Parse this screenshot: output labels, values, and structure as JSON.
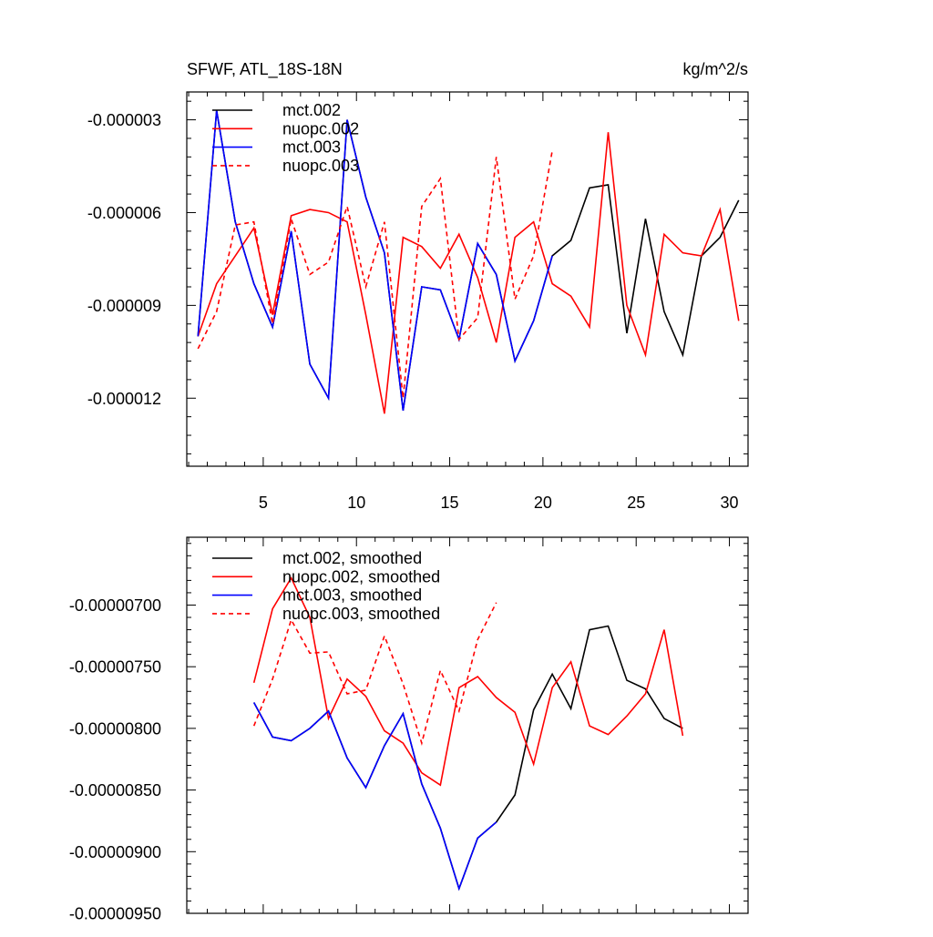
{
  "chart_data": [
    {
      "type": "line",
      "title": "SFWF, ATL_18S-18N",
      "units": "kg/m^2/s",
      "xlabel": "",
      "ylabel": "",
      "xlim": [
        0.9,
        31.0
      ],
      "ylim": [
        -1.42e-05,
        -2.1e-06
      ],
      "xticks": [
        5,
        10,
        15,
        20,
        25,
        30
      ],
      "xtick_labels": [
        "5",
        "10",
        "15",
        "20",
        "25",
        "30"
      ],
      "yticks": [
        -3e-06,
        -6e-06,
        -9e-06,
        -1.2e-05
      ],
      "ytick_labels": [
        "-0.000003",
        "-0.000006",
        "-0.000009",
        "-0.000012"
      ],
      "legend_position": "top-left",
      "series": [
        {
          "name": "mct.002",
          "color": "#000000",
          "dash": "solid",
          "x": [
            1.5,
            2.5,
            3.5,
            4.5,
            5.5,
            6.5,
            7.5,
            8.5,
            9.5,
            10.5,
            11.5,
            12.5,
            13.5,
            14.5,
            15.5,
            16.5,
            17.5,
            18.5,
            19.5,
            20.5,
            21.5,
            22.5,
            23.5,
            24.5,
            25.5,
            26.5,
            27.5,
            28.5,
            29.5,
            30.5
          ],
          "values": [
            -1e-05,
            -2.7e-06,
            -6.3e-06,
            -8.3e-06,
            -9.7e-06,
            -6.6e-06,
            -1.09e-05,
            -1.2e-05,
            -3e-06,
            -5.5e-06,
            -7.3e-06,
            -1.24e-05,
            -8.4e-06,
            -8.5e-06,
            -1.01e-05,
            -7e-06,
            -8e-06,
            -1.08e-05,
            -9.5e-06,
            -7.4e-06,
            -6.9e-06,
            -5.2e-06,
            -5.1e-06,
            -9.9e-06,
            -6.2e-06,
            -9.2e-06,
            -1.06e-05,
            -7.4e-06,
            -6.8e-06,
            -5.6e-06
          ]
        },
        {
          "name": "nuopc.002",
          "color": "#ff0000",
          "dash": "solid",
          "x": [
            1.5,
            2.5,
            3.5,
            4.5,
            5.5,
            6.5,
            7.5,
            8.5,
            9.5,
            10.5,
            11.5,
            12.5,
            13.5,
            14.5,
            15.5,
            16.5,
            17.5,
            18.5,
            19.5,
            20.5,
            21.5,
            22.5,
            23.5,
            24.5,
            25.5,
            26.5,
            27.5,
            28.5,
            29.5,
            30.5
          ],
          "values": [
            -1e-05,
            -8.3e-06,
            -7.4e-06,
            -6.5e-06,
            -9.3e-06,
            -6.1e-06,
            -5.9e-06,
            -6e-06,
            -6.3e-06,
            -9.3e-06,
            -1.25e-05,
            -6.8e-06,
            -7.1e-06,
            -7.8e-06,
            -6.7e-06,
            -8.1e-06,
            -1.02e-05,
            -6.8e-06,
            -6.3e-06,
            -8.3e-06,
            -8.7e-06,
            -9.7e-06,
            -3.4e-06,
            -9e-06,
            -1.06e-05,
            -6.7e-06,
            -7.3e-06,
            -7.4e-06,
            -5.9e-06,
            -9.5e-06
          ]
        },
        {
          "name": "mct.003",
          "color": "#0000ff",
          "dash": "solid",
          "x": [
            1.5,
            2.5,
            3.5,
            4.5,
            5.5,
            6.5,
            7.5,
            8.5,
            9.5,
            10.5,
            11.5,
            12.5,
            13.5,
            14.5,
            15.5,
            16.5,
            17.5,
            18.5,
            19.5,
            20.5
          ],
          "values": [
            -1e-05,
            -2.7e-06,
            -6.3e-06,
            -8.3e-06,
            -9.7e-06,
            -6.6e-06,
            -1.09e-05,
            -1.2e-05,
            -3e-06,
            -5.5e-06,
            -7.3e-06,
            -1.24e-05,
            -8.4e-06,
            -8.5e-06,
            -1.01e-05,
            -7e-06,
            -8e-06,
            -1.08e-05,
            -9.5e-06,
            -7.4e-06
          ]
        },
        {
          "name": "nuopc.003",
          "color": "#ff0000",
          "dash": "dashed",
          "x": [
            1.5,
            2.5,
            3.5,
            4.5,
            5.5,
            6.5,
            7.5,
            8.5,
            9.5,
            10.5,
            11.5,
            12.5,
            13.5,
            14.5,
            15.5,
            16.5,
            17.5,
            18.5,
            19.5,
            20.5
          ],
          "values": [
            -1.04e-05,
            -9.2e-06,
            -6.4e-06,
            -6.3e-06,
            -9.6e-06,
            -6.2e-06,
            -8e-06,
            -7.6e-06,
            -5.8e-06,
            -8.4e-06,
            -6.3e-06,
            -1.2e-05,
            -5.8e-06,
            -4.9e-06,
            -1.01e-05,
            -9.4e-06,
            -4.2e-06,
            -8.8e-06,
            -7.4e-06,
            -4e-06
          ]
        }
      ]
    },
    {
      "type": "line",
      "title": "",
      "xlabel": "",
      "ylabel": "",
      "xlim": [
        0.9,
        31.0
      ],
      "ylim": [
        -9.5e-06,
        -6.45e-06
      ],
      "xticks": [
        5,
        10,
        15,
        20,
        25,
        30
      ],
      "xtick_labels": [],
      "yticks": [
        -7e-06,
        -7.5e-06,
        -8e-06,
        -8.5e-06,
        -9e-06,
        -9.5e-06
      ],
      "ytick_labels": [
        "-0.00000700",
        "-0.00000750",
        "-0.00000800",
        "-0.00000850",
        "-0.00000900",
        "-0.00000950"
      ],
      "legend_position": "top-left",
      "series": [
        {
          "name": "mct.002, smoothed",
          "color": "#000000",
          "dash": "solid",
          "x": [
            4.5,
            5.5,
            6.5,
            7.5,
            8.5,
            9.5,
            10.5,
            11.5,
            12.5,
            13.5,
            14.5,
            15.5,
            16.5,
            17.5,
            18.5,
            19.5,
            20.5,
            21.5,
            22.5,
            23.5,
            24.5,
            25.5,
            26.5,
            27.5
          ],
          "values": [
            -7.79e-06,
            -8.07e-06,
            -8.1e-06,
            -8e-06,
            -7.86e-06,
            -8.24e-06,
            -8.48e-06,
            -8.14e-06,
            -7.88e-06,
            -8.45e-06,
            -8.81e-06,
            -9.3e-06,
            -8.89e-06,
            -8.76e-06,
            -8.54e-06,
            -7.85e-06,
            -7.56e-06,
            -7.84e-06,
            -7.2e-06,
            -7.17e-06,
            -7.61e-06,
            -7.68e-06,
            -7.92e-06,
            -8e-06
          ]
        },
        {
          "name": "nuopc.002, smoothed",
          "color": "#ff0000",
          "dash": "solid",
          "x": [
            4.5,
            5.5,
            6.5,
            7.5,
            8.5,
            9.5,
            10.5,
            11.5,
            12.5,
            13.5,
            14.5,
            15.5,
            16.5,
            17.5,
            18.5,
            19.5,
            20.5,
            21.5,
            22.5,
            23.5,
            24.5,
            25.5,
            26.5,
            27.5
          ],
          "values": [
            -7.63e-06,
            -7.03e-06,
            -6.78e-06,
            -7.1e-06,
            -7.92e-06,
            -7.6e-06,
            -7.74e-06,
            -8.02e-06,
            -8.12e-06,
            -8.36e-06,
            -8.46e-06,
            -7.67e-06,
            -7.58e-06,
            -7.75e-06,
            -7.87e-06,
            -8.29e-06,
            -7.67e-06,
            -7.46e-06,
            -7.98e-06,
            -8.05e-06,
            -7.9e-06,
            -7.72e-06,
            -7.2e-06,
            -8.06e-06
          ]
        },
        {
          "name": "mct.003, smoothed",
          "color": "#0000ff",
          "dash": "solid",
          "x": [
            4.5,
            5.5,
            6.5,
            7.5,
            8.5,
            9.5,
            10.5,
            11.5,
            12.5,
            13.5,
            14.5,
            15.5,
            16.5,
            17.5
          ],
          "values": [
            -7.79e-06,
            -8.07e-06,
            -8.1e-06,
            -8e-06,
            -7.86e-06,
            -8.24e-06,
            -8.48e-06,
            -8.14e-06,
            -7.88e-06,
            -8.45e-06,
            -8.81e-06,
            -9.3e-06,
            -8.89e-06,
            -8.76e-06
          ]
        },
        {
          "name": "nuopc.003, smoothed",
          "color": "#ff0000",
          "dash": "dashed",
          "x": [
            4.5,
            5.5,
            6.5,
            7.5,
            8.5,
            9.5,
            10.5,
            11.5,
            12.5,
            13.5,
            14.5,
            15.5,
            16.5,
            17.5
          ],
          "values": [
            -7.98e-06,
            -7.6e-06,
            -7.12e-06,
            -7.39e-06,
            -7.38e-06,
            -7.72e-06,
            -7.69e-06,
            -7.25e-06,
            -7.64e-06,
            -8.12e-06,
            -7.53e-06,
            -7.86e-06,
            -7.28e-06,
            -6.98e-06
          ]
        }
      ]
    }
  ]
}
